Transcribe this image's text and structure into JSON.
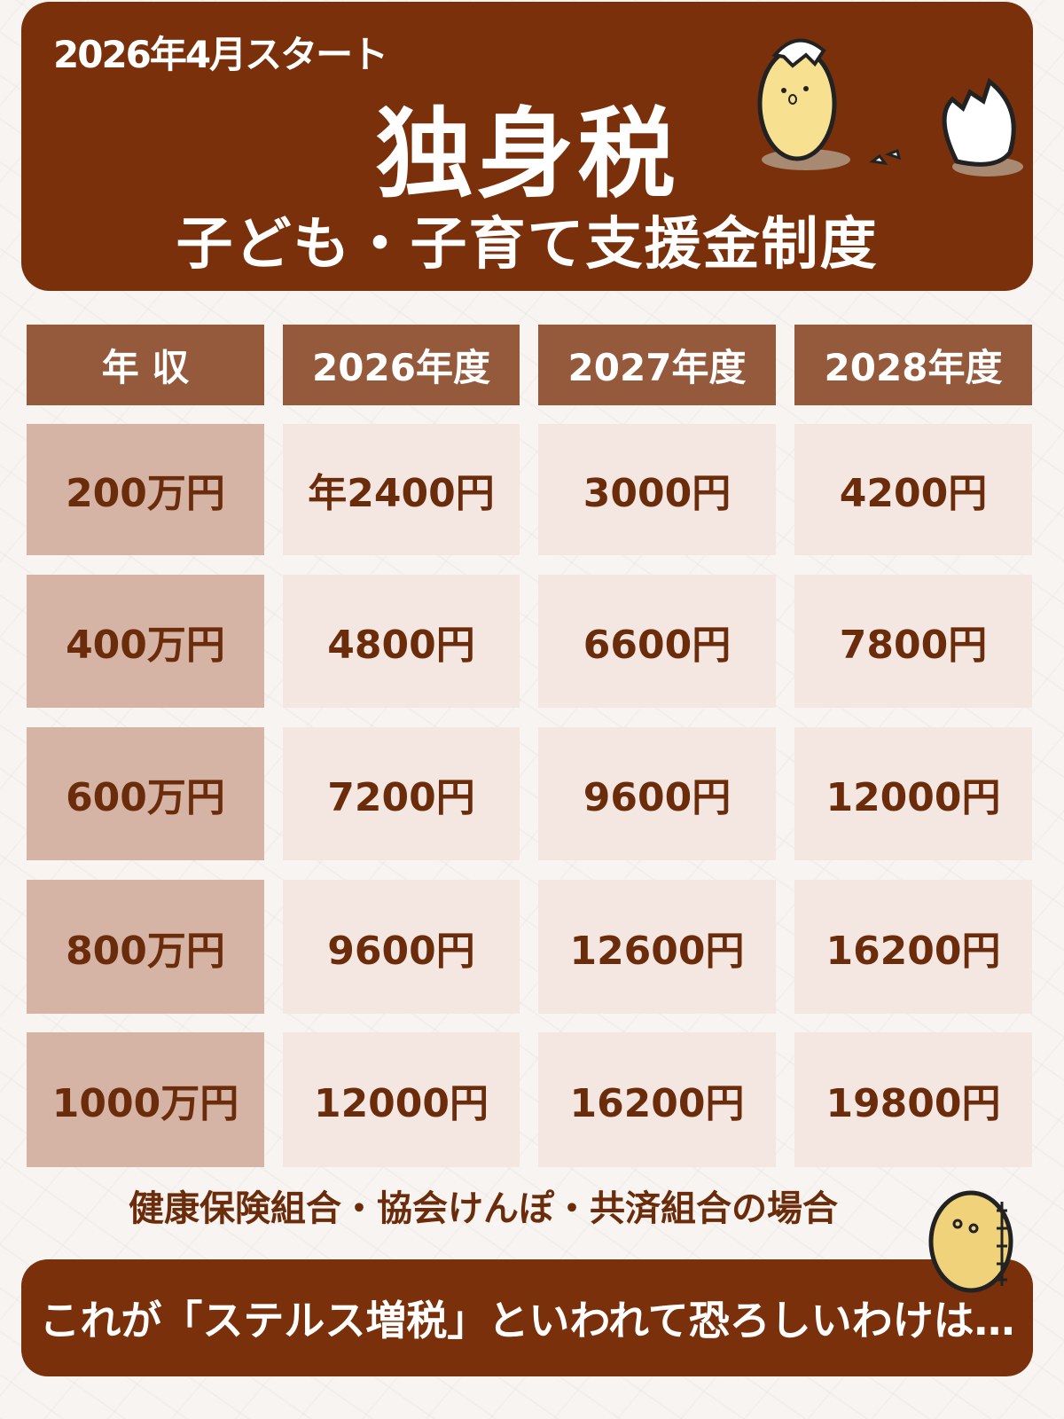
{
  "header": {
    "start_label": "2026年4月スタート",
    "title": "独身税",
    "subtitle": "子ども・子育て支援金制度"
  },
  "table": {
    "columns": [
      "年 収",
      "2026年度",
      "2027年度",
      "2028年度"
    ],
    "rows": [
      {
        "income": "200万円",
        "values": [
          "年2400円",
          "3000円",
          "4200円"
        ]
      },
      {
        "income": "400万円",
        "values": [
          "4800円",
          "6600円",
          "7800円"
        ]
      },
      {
        "income": "600万円",
        "values": [
          "7200円",
          "9600円",
          "12000円"
        ]
      },
      {
        "income": "800万円",
        "values": [
          "9600円",
          "12600円",
          "16200円"
        ]
      },
      {
        "income": "1000万円",
        "values": [
          "12000円",
          "16200円",
          "19800円"
        ]
      }
    ]
  },
  "note": "健康保険組合・協会けんぽ・共済組合の場合",
  "footer": "これが「ステルス増税」といわれて恐ろしいわけは…",
  "colors": {
    "brand_brown": "#7a300a",
    "header_cell": "#955a3c",
    "income_cell": "#d5b3a5",
    "value_cell": "#f4e7e1",
    "text": "#6b2c0c"
  }
}
